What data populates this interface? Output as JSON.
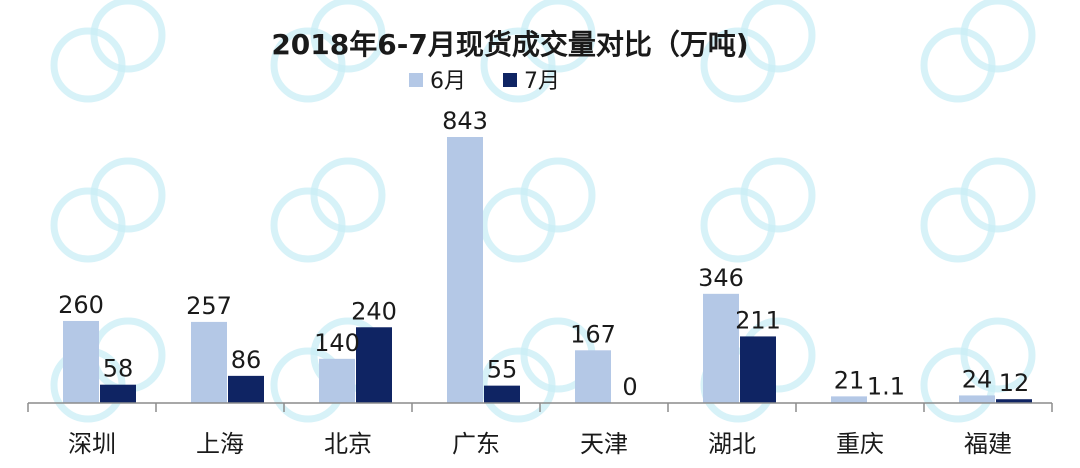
{
  "chart_data": {
    "type": "bar",
    "title": "2018年6-7月现货成交量对比（万吨)",
    "categories": [
      "深圳",
      "上海",
      "北京",
      "广东",
      "天津",
      "湖北",
      "重庆",
      "福建"
    ],
    "series": [
      {
        "name": "6月",
        "values": [
          260,
          257,
          140,
          843,
          167,
          346,
          21,
          24
        ],
        "labels": [
          "260",
          "257",
          "140",
          "843",
          "167",
          "346",
          "21",
          "24"
        ]
      },
      {
        "name": "7月",
        "values": [
          58,
          86,
          240,
          55,
          0,
          211,
          1.1,
          12
        ],
        "labels": [
          "58",
          "86",
          "240",
          "55",
          "0",
          "211",
          "1.1",
          "12"
        ]
      }
    ],
    "ylim": [
      0,
      900
    ],
    "grid": false,
    "legend_position": "top-center",
    "colors": {
      "6月": "#b4c8e6",
      "7月": "#0f2463"
    }
  }
}
